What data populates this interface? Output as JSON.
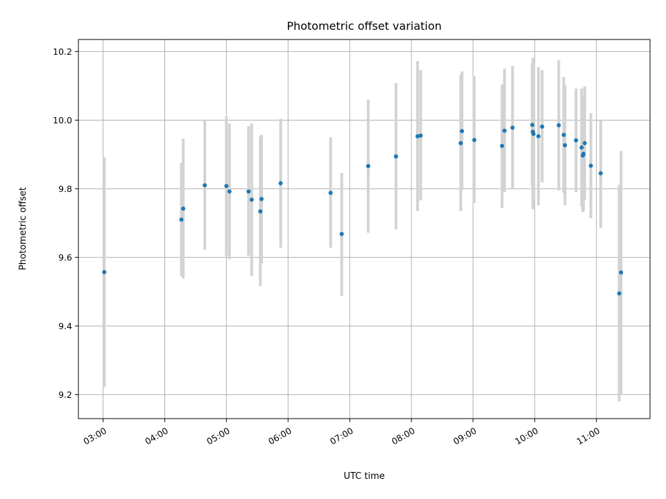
{
  "chart_data": {
    "type": "scatter",
    "title": "Photometric offset variation",
    "xlabel": "UTC time",
    "ylabel": "Photometric offset",
    "x_unit": "hours UTC",
    "xlim": [
      2.6,
      11.87
    ],
    "ylim": [
      9.13,
      10.235
    ],
    "x_ticks": [
      {
        "value": 3,
        "label": "03:00"
      },
      {
        "value": 4,
        "label": "04:00"
      },
      {
        "value": 5,
        "label": "05:00"
      },
      {
        "value": 6,
        "label": "06:00"
      },
      {
        "value": 7,
        "label": "07:00"
      },
      {
        "value": 8,
        "label": "08:00"
      },
      {
        "value": 9,
        "label": "09:00"
      },
      {
        "value": 10,
        "label": "10:00"
      },
      {
        "value": 11,
        "label": "11:00"
      }
    ],
    "y_ticks": [
      {
        "value": 9.2,
        "label": "9.2"
      },
      {
        "value": 9.4,
        "label": "9.4"
      },
      {
        "value": 9.6,
        "label": "9.6"
      },
      {
        "value": 9.8,
        "label": "9.8"
      },
      {
        "value": 10.0,
        "label": "10.0"
      },
      {
        "value": 10.2,
        "label": "10.2"
      }
    ],
    "grid": true,
    "point_color": "#1f77b4",
    "errorbar_color": "#d3d3d3",
    "points": [
      {
        "time": "03:00",
        "x": 3.02,
        "y": 9.557,
        "low": 9.222,
        "high": 9.892
      },
      {
        "time": "04:16",
        "x": 4.27,
        "y": 9.71,
        "low": 9.545,
        "high": 9.875
      },
      {
        "time": "04:18",
        "x": 4.3,
        "y": 9.742,
        "low": 9.538,
        "high": 9.946
      },
      {
        "time": "04:39",
        "x": 4.65,
        "y": 9.81,
        "low": 9.622,
        "high": 9.998
      },
      {
        "time": "05:00",
        "x": 5.0,
        "y": 9.808,
        "low": 9.605,
        "high": 10.011
      },
      {
        "time": "05:03",
        "x": 5.05,
        "y": 9.792,
        "low": 9.594,
        "high": 9.99
      },
      {
        "time": "05:21",
        "x": 5.36,
        "y": 9.792,
        "low": 9.605,
        "high": 9.982
      },
      {
        "time": "05:25",
        "x": 5.41,
        "y": 9.768,
        "low": 9.546,
        "high": 9.99
      },
      {
        "time": "05:33",
        "x": 5.55,
        "y": 9.734,
        "low": 9.516,
        "high": 9.952
      },
      {
        "time": "05:34",
        "x": 5.57,
        "y": 9.77,
        "low": 9.583,
        "high": 9.957
      },
      {
        "time": "05:53",
        "x": 5.88,
        "y": 9.816,
        "low": 9.628,
        "high": 10.004
      },
      {
        "time": "06:41",
        "x": 6.69,
        "y": 9.788,
        "low": 9.628,
        "high": 9.95
      },
      {
        "time": "06:52",
        "x": 6.87,
        "y": 9.668,
        "low": 9.488,
        "high": 9.846
      },
      {
        "time": "07:18",
        "x": 7.3,
        "y": 9.866,
        "low": 9.672,
        "high": 10.06
      },
      {
        "time": "07:45",
        "x": 7.75,
        "y": 9.894,
        "low": 9.682,
        "high": 10.108
      },
      {
        "time": "08:06",
        "x": 8.1,
        "y": 9.953,
        "low": 9.735,
        "high": 10.172
      },
      {
        "time": "08:09",
        "x": 8.15,
        "y": 9.955,
        "low": 9.766,
        "high": 10.146
      },
      {
        "time": "08:48",
        "x": 8.8,
        "y": 9.933,
        "low": 9.735,
        "high": 10.131
      },
      {
        "time": "08:49",
        "x": 8.82,
        "y": 9.968,
        "low": 9.796,
        "high": 10.142
      },
      {
        "time": "09:01",
        "x": 9.02,
        "y": 9.942,
        "low": 9.758,
        "high": 10.128
      },
      {
        "time": "09:28",
        "x": 9.47,
        "y": 9.925,
        "low": 9.744,
        "high": 10.104
      },
      {
        "time": "09:30",
        "x": 9.51,
        "y": 9.969,
        "low": 9.79,
        "high": 10.15
      },
      {
        "time": "09:38",
        "x": 9.64,
        "y": 9.978,
        "low": 9.8,
        "high": 10.158
      },
      {
        "time": "09:57",
        "x": 9.96,
        "y": 9.986,
        "low": 9.806,
        "high": 10.166
      },
      {
        "time": "09:58",
        "x": 9.97,
        "y": 9.966,
        "low": 9.74,
        "high": 10.182
      },
      {
        "time": "09:58",
        "x": 9.98,
        "y": 9.96,
        "low": 9.768,
        "high": 10.166
      },
      {
        "time": "10:04",
        "x": 10.06,
        "y": 9.953,
        "low": 9.752,
        "high": 10.154
      },
      {
        "time": "10:07",
        "x": 10.12,
        "y": 9.981,
        "low": 9.818,
        "high": 10.146
      },
      {
        "time": "10:23",
        "x": 10.39,
        "y": 9.985,
        "low": 9.795,
        "high": 10.175
      },
      {
        "time": "10:28",
        "x": 10.47,
        "y": 9.957,
        "low": 9.788,
        "high": 10.126
      },
      {
        "time": "10:29",
        "x": 10.49,
        "y": 9.927,
        "low": 9.752,
        "high": 10.102
      },
      {
        "time": "10:40",
        "x": 10.67,
        "y": 9.941,
        "low": 9.79,
        "high": 10.092
      },
      {
        "time": "10:46",
        "x": 10.76,
        "y": 9.92,
        "low": 9.748,
        "high": 10.092
      },
      {
        "time": "10:47",
        "x": 10.78,
        "y": 9.897,
        "low": 9.732,
        "high": 10.062
      },
      {
        "time": "10:47",
        "x": 10.79,
        "y": 9.902,
        "low": 9.736,
        "high": 10.068
      },
      {
        "time": "10:49",
        "x": 10.81,
        "y": 9.933,
        "low": 9.768,
        "high": 10.098
      },
      {
        "time": "10:55",
        "x": 10.91,
        "y": 9.867,
        "low": 9.714,
        "high": 10.02
      },
      {
        "time": "11:04",
        "x": 11.07,
        "y": 9.845,
        "low": 9.686,
        "high": 10.0
      },
      {
        "time": "11:22",
        "x": 11.37,
        "y": 9.495,
        "low": 9.18,
        "high": 9.812
      },
      {
        "time": "11:24",
        "x": 11.4,
        "y": 9.556,
        "low": 9.202,
        "high": 9.91
      }
    ]
  }
}
